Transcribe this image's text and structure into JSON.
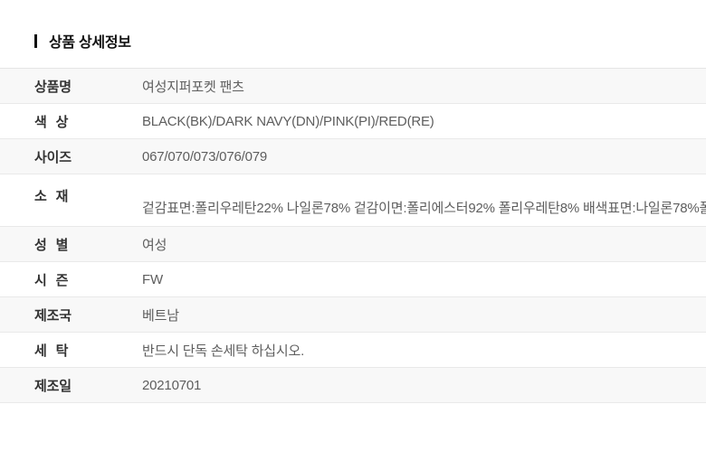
{
  "section": {
    "title": "상품 상세정보"
  },
  "table": {
    "rows": [
      {
        "label": "상품명",
        "value": "여성지퍼포켓 팬츠"
      },
      {
        "label": "색 상",
        "value": "BLACK(BK)/DARK NAVY(DN)/PINK(PI)/RED(RE)"
      },
      {
        "label": "사이즈",
        "value": "067/070/073/076/079"
      },
      {
        "label": "소 재",
        "value": "겉감표면:폴리우레탄22% 나일론78% 겉감이면:폴리에스터92% 폴리우레탄8% 배색표면:나일론78%폴"
      },
      {
        "label": "성 별",
        "value": "여성"
      },
      {
        "label": "시 즌",
        "value": "FW"
      },
      {
        "label": "제조국",
        "value": "베트남"
      },
      {
        "label": "세 탁",
        "value": "반드시 단독 손세탁 하십시오."
      },
      {
        "label": "제조일",
        "value": "20210701"
      }
    ]
  },
  "colors": {
    "accent": "#111111",
    "label_text": "#333333",
    "value_text": "#5e5e5e",
    "row_alt_background": "#f8f8f8",
    "divider": "#e9e9e9"
  }
}
